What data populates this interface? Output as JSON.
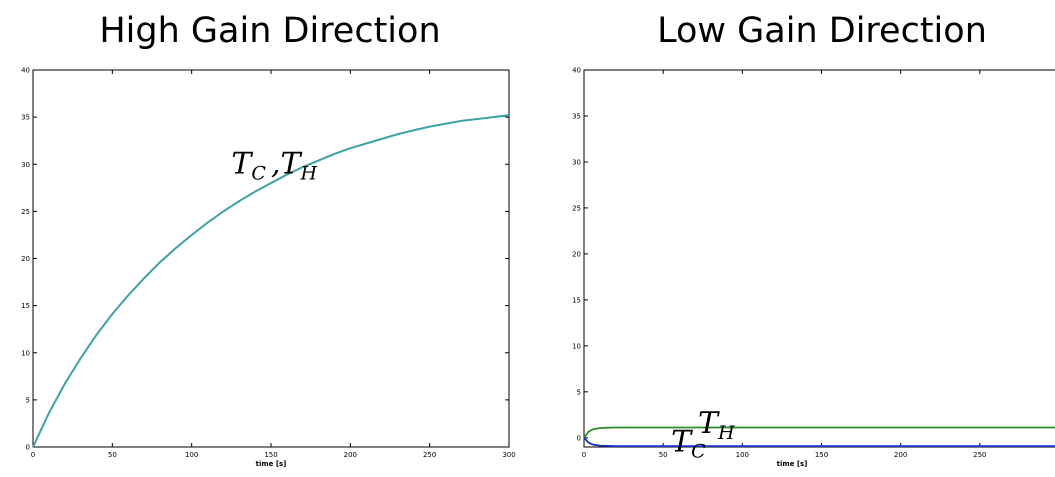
{
  "chart_data": [
    {
      "type": "line",
      "title": "High Gain Direction",
      "xlabel": "time [s]",
      "ylabel": "",
      "xlim": [
        0,
        300
      ],
      "ylim": [
        0,
        40
      ],
      "xticks": [
        0,
        50,
        100,
        150,
        200,
        250,
        300
      ],
      "yticks": [
        0,
        5,
        10,
        15,
        20,
        25,
        30,
        35,
        40
      ],
      "grid": false,
      "series": [
        {
          "name": "T_C",
          "color": "#1f4fbf",
          "style": "solid",
          "x": [
            0,
            10,
            20,
            30,
            40,
            50,
            60,
            70,
            80,
            90,
            100,
            110,
            120,
            130,
            140,
            150,
            160,
            170,
            180,
            190,
            200,
            210,
            220,
            230,
            240,
            250,
            260,
            270,
            280,
            290,
            300
          ],
          "y": [
            0,
            3.6,
            6.7,
            9.4,
            11.9,
            14.1,
            16.1,
            17.9,
            19.6,
            21.1,
            22.5,
            23.8,
            25.0,
            26.1,
            27.1,
            28.0,
            28.9,
            29.7,
            30.4,
            31.1,
            31.7,
            32.2,
            32.7,
            33.2,
            33.6,
            34.0,
            34.3,
            34.6,
            34.8,
            35.0,
            35.2
          ]
        },
        {
          "name": "T_H",
          "color": "#3aa7a0",
          "style": "solid",
          "x": [
            0,
            10,
            20,
            30,
            40,
            50,
            60,
            70,
            80,
            90,
            100,
            110,
            120,
            130,
            140,
            150,
            160,
            170,
            180,
            190,
            200,
            210,
            220,
            230,
            240,
            250,
            260,
            270,
            280,
            290,
            300
          ],
          "y": [
            0,
            3.6,
            6.7,
            9.4,
            11.9,
            14.1,
            16.1,
            17.9,
            19.6,
            21.1,
            22.5,
            23.8,
            25.0,
            26.1,
            27.1,
            28.0,
            28.9,
            29.7,
            30.4,
            31.1,
            31.7,
            32.2,
            32.7,
            33.2,
            33.6,
            34.0,
            34.3,
            34.6,
            34.8,
            35.0,
            35.2
          ]
        }
      ],
      "annotations": [
        {
          "text": "T",
          "sub": "C",
          "x": 125,
          "y": 29
        },
        {
          "text": ",",
          "sub": "",
          "x": 150,
          "y": 29
        },
        {
          "text": "T",
          "sub": "H",
          "x": 156,
          "y": 29
        }
      ]
    },
    {
      "type": "line",
      "title": "Low Gain Direction",
      "xlabel": "time [s]",
      "ylabel": "",
      "xlim": [
        0,
        300
      ],
      "ylim": [
        -1,
        40
      ],
      "xticks": [
        0,
        50,
        100,
        150,
        200,
        250
      ],
      "yticks": [
        0,
        5,
        10,
        15,
        20,
        25,
        30,
        35,
        40
      ],
      "grid": false,
      "series": [
        {
          "name": "T_H",
          "color": "#2e8b2e",
          "style": "solid",
          "x": [
            0,
            3,
            6,
            10,
            15,
            20,
            30,
            50,
            100,
            150,
            200,
            250,
            300
          ],
          "y": [
            0,
            0.7,
            0.95,
            1.05,
            1.1,
            1.12,
            1.12,
            1.12,
            1.12,
            1.12,
            1.12,
            1.12,
            1.12
          ]
        },
        {
          "name": "T_C",
          "color": "#1b2fd6",
          "style": "solid",
          "x": [
            0,
            3,
            6,
            10,
            15,
            20,
            30,
            50,
            100,
            150,
            200,
            250,
            300
          ],
          "y": [
            0,
            -0.55,
            -0.75,
            -0.85,
            -0.88,
            -0.9,
            -0.9,
            -0.9,
            -0.9,
            -0.9,
            -0.9,
            -0.9,
            -0.9
          ]
        }
      ],
      "annotations": [
        {
          "text": "T",
          "sub": "H",
          "x": 72,
          "y": 0.5
        },
        {
          "text": "T",
          "sub": "C",
          "x": 55,
          "y": -1.5
        }
      ]
    }
  ]
}
